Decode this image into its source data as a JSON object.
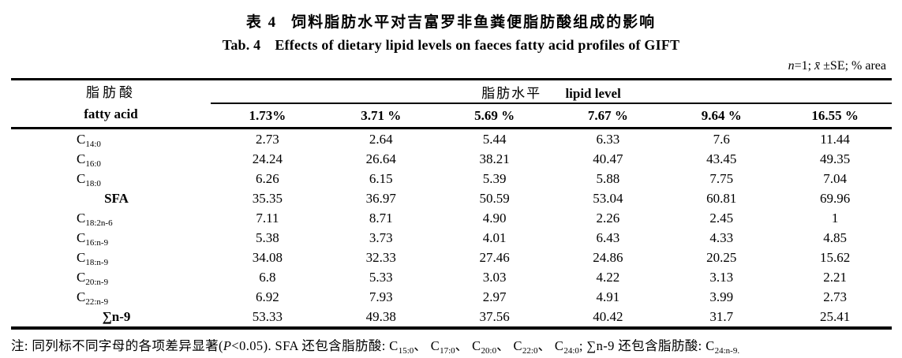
{
  "page": {
    "title_zh_prefix": "表 4",
    "title_zh_main": "饲料脂肪水平对吉富罗非鱼粪便脂肪酸组成的影响",
    "title_en_prefix": "Tab. 4",
    "title_en_main": "Effects of dietary lipid levels on faeces fatty acid profiles of GIFT"
  },
  "note": {
    "parts": [
      {
        "text": "n",
        "style": "italic"
      },
      {
        "text": "=1; "
      },
      {
        "text": "x̄",
        "style": "italic"
      },
      {
        "text": " ±SE; % area"
      }
    ]
  },
  "table": {
    "row_header_zh": "脂肪酸",
    "row_header_en": "fatty acid",
    "spanner_zh": "脂肪水平",
    "spanner_en": "lipid level",
    "columns": [
      "1.73%",
      "3.71 %",
      "5.69 %",
      "7.67 %",
      "9.64 %",
      "16.55 %"
    ],
    "rows": [
      {
        "base": "C",
        "sub": "14:0",
        "bold": false,
        "values": [
          "2.73",
          "2.64",
          "5.44",
          "6.33",
          "7.6",
          "11.44"
        ]
      },
      {
        "base": "C",
        "sub": "16:0",
        "bold": false,
        "values": [
          "24.24",
          "26.64",
          "38.21",
          "40.47",
          "43.45",
          "49.35"
        ]
      },
      {
        "base": "C",
        "sub": "18:0",
        "bold": false,
        "values": [
          "6.26",
          "6.15",
          "5.39",
          "5.88",
          "7.75",
          "7.04"
        ]
      },
      {
        "base": "SFA",
        "sub": "",
        "bold": true,
        "values": [
          "35.35",
          "36.97",
          "50.59",
          "53.04",
          "60.81",
          "69.96"
        ]
      },
      {
        "base": "C",
        "sub": "18:2n-6",
        "bold": false,
        "values": [
          "7.11",
          "8.71",
          "4.90",
          "2.26",
          "2.45",
          "1"
        ]
      },
      {
        "base": "C",
        "sub": "16:n-9",
        "bold": false,
        "values": [
          "5.38",
          "3.73",
          "4.01",
          "6.43",
          "4.33",
          "4.85"
        ]
      },
      {
        "base": "C",
        "sub": "18:n-9",
        "bold": false,
        "values": [
          "34.08",
          "32.33",
          "27.46",
          "24.86",
          "20.25",
          "15.62"
        ]
      },
      {
        "base": "C",
        "sub": "20:n-9",
        "bold": false,
        "values": [
          "6.8",
          "5.33",
          "3.03",
          "4.22",
          "3.13",
          "2.21"
        ]
      },
      {
        "base": "C",
        "sub": "22:n-9",
        "bold": false,
        "values": [
          "6.92",
          "7.93",
          "2.97",
          "4.91",
          "3.99",
          "2.73"
        ]
      },
      {
        "base": "∑n-9",
        "sub": "",
        "bold": true,
        "values": [
          "53.33",
          "49.38",
          "37.56",
          "40.42",
          "31.7",
          "25.41"
        ]
      }
    ]
  },
  "footnote": {
    "parts": [
      {
        "text": "注: 同列标不同字母的各项差异显著("
      },
      {
        "text": "P",
        "style": "italic"
      },
      {
        "text": "<0.05). SFA 还包含脂肪酸: C"
      },
      {
        "text": "15:0",
        "style": "sub"
      },
      {
        "text": "、 C"
      },
      {
        "text": "17:0",
        "style": "sub"
      },
      {
        "text": "、 C"
      },
      {
        "text": "20:0",
        "style": "sub"
      },
      {
        "text": "、 C"
      },
      {
        "text": "22:0",
        "style": "sub"
      },
      {
        "text": "、 C"
      },
      {
        "text": "24:0",
        "style": "sub"
      },
      {
        "text": "; ∑n-9 还包含脂肪酸: C"
      },
      {
        "text": "24:n-9.",
        "style": "sub"
      }
    ]
  },
  "colors": {
    "foreground": "#000000",
    "background": "#ffffff"
  }
}
